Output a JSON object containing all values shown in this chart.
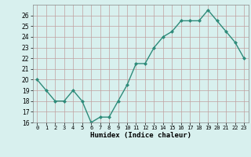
{
  "x": [
    0,
    1,
    2,
    3,
    4,
    5,
    6,
    7,
    8,
    9,
    10,
    11,
    12,
    13,
    14,
    15,
    16,
    17,
    18,
    19,
    20,
    21,
    22,
    23
  ],
  "y": [
    20,
    19,
    18,
    18,
    19,
    18,
    16,
    16.5,
    16.5,
    18,
    19.5,
    21.5,
    21.5,
    23,
    24,
    24.5,
    25.5,
    25.5,
    25.5,
    26.5,
    25.5,
    24.5,
    23.5,
    22
  ],
  "xlabel": "Humidex (Indice chaleur)",
  "ylim": [
    16,
    27
  ],
  "xlim": [
    -0.5,
    23.5
  ],
  "yticks": [
    16,
    17,
    18,
    19,
    20,
    21,
    22,
    23,
    24,
    25,
    26
  ],
  "xticks": [
    0,
    1,
    2,
    3,
    4,
    5,
    6,
    7,
    8,
    9,
    10,
    11,
    12,
    13,
    14,
    15,
    16,
    17,
    18,
    19,
    20,
    21,
    22,
    23
  ],
  "line_color": "#2e8b7a",
  "marker_color": "#2e8b7a",
  "bg_color": "#d8f0ee",
  "grid_color": "#c0a0a0",
  "plot_bg": "#d8f0ee"
}
